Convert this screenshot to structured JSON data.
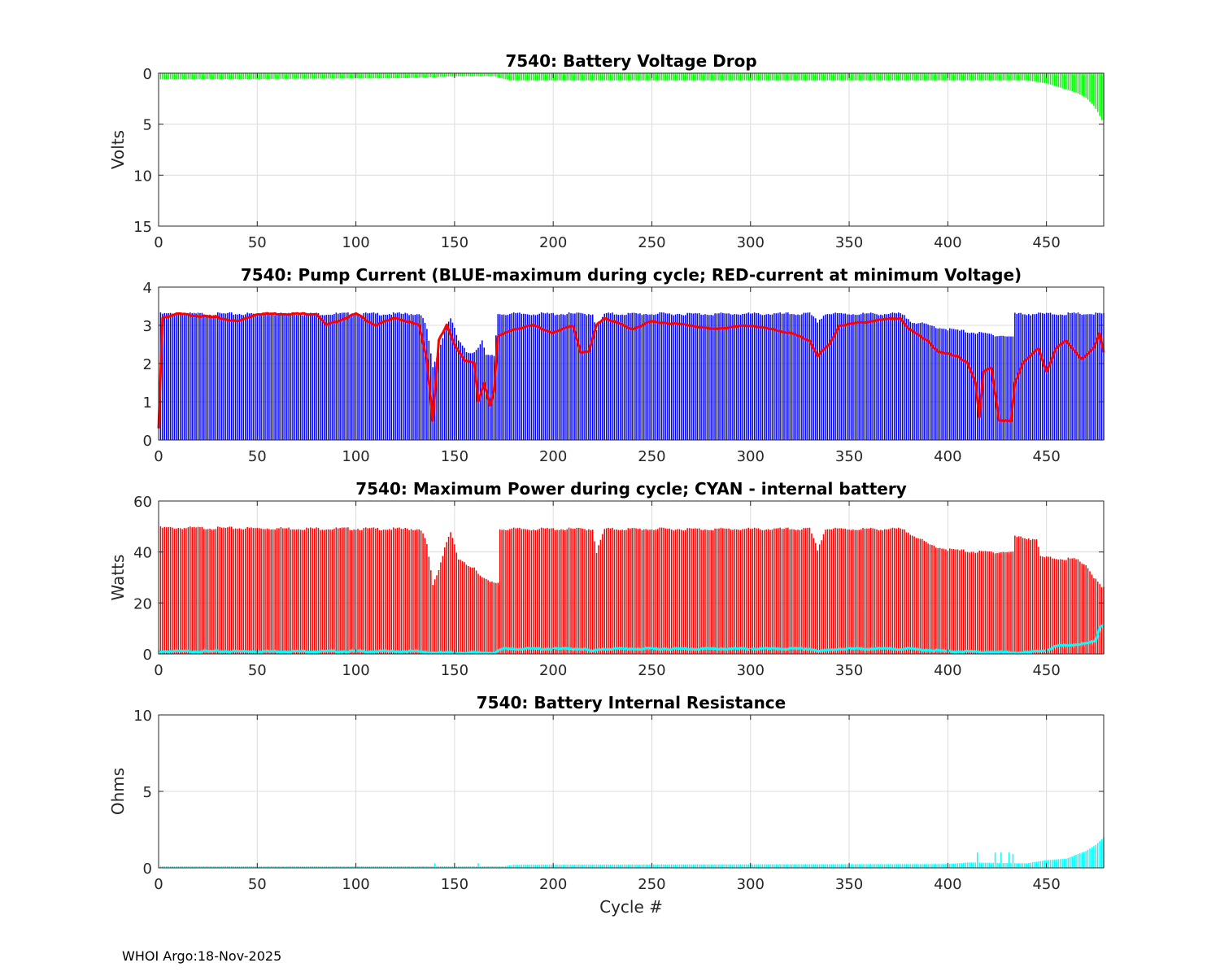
{
  "footer": "WHOI Argo:18-Nov-2025",
  "colors": {
    "green": "#00ff00",
    "blue": "#0000ff",
    "red": "#ff0000",
    "cyan": "#00ffff",
    "grid": "#dcdcdc",
    "axis": "#262626"
  },
  "chart_data": [
    {
      "type": "bar",
      "id": "voltage",
      "title": "7540: Battery Voltage Drop",
      "xlabel": "",
      "ylabel": "Volts",
      "xlim": [
        0,
        479
      ],
      "ylim": [
        0,
        15
      ],
      "y_reversed": true,
      "xticks": [
        0,
        50,
        100,
        150,
        200,
        250,
        300,
        350,
        400,
        450
      ],
      "yticks": [
        0,
        5,
        10,
        15
      ],
      "grid": true,
      "series": [
        {
          "name": "Battery voltage drop",
          "color": "green",
          "kind": "bar",
          "knots": [
            [
              1,
              0.6
            ],
            [
              120,
              0.5
            ],
            [
              140,
              0.4
            ],
            [
              150,
              0.3
            ],
            [
              170,
              0.3
            ],
            [
              178,
              0.7
            ],
            [
              260,
              0.7
            ],
            [
              440,
              0.7
            ],
            [
              450,
              1.0
            ],
            [
              455,
              1.3
            ],
            [
              460,
              1.6
            ],
            [
              465,
              1.9
            ],
            [
              470,
              2.4
            ],
            [
              474,
              3.2
            ],
            [
              476,
              3.8
            ],
            [
              478,
              4.6
            ]
          ]
        }
      ]
    },
    {
      "type": "bar",
      "id": "current",
      "title": "7540: Pump Current (BLUE-maximum during cycle; RED-current at minimum Voltage)",
      "xlabel": "",
      "ylabel": "",
      "xlim": [
        0,
        479
      ],
      "ylim": [
        0,
        4
      ],
      "xticks": [
        0,
        50,
        100,
        150,
        200,
        250,
        300,
        350,
        400,
        450
      ],
      "yticks": [
        0,
        1,
        2,
        3,
        4
      ],
      "grid": true,
      "series": [
        {
          "name": "BLUE-maximum during cycle",
          "color": "blue",
          "kind": "bar",
          "knots": [
            [
              1,
              3.3
            ],
            [
              133,
              3.3
            ],
            [
              136,
              2.9
            ],
            [
              139,
              1.9
            ],
            [
              142,
              2.3
            ],
            [
              145,
              2.9
            ],
            [
              148,
              3.2
            ],
            [
              152,
              2.6
            ],
            [
              156,
              2.3
            ],
            [
              160,
              2.3
            ],
            [
              164,
              2.6
            ],
            [
              166,
              2.2
            ],
            [
              170,
              2.2
            ],
            [
              172,
              3.3
            ],
            [
              220,
              3.3
            ],
            [
              222,
              2.9
            ],
            [
              226,
              3.3
            ],
            [
              330,
              3.3
            ],
            [
              334,
              3.1
            ],
            [
              338,
              3.3
            ],
            [
              376,
              3.3
            ],
            [
              382,
              3.1
            ],
            [
              390,
              3.0
            ],
            [
              400,
              2.9
            ],
            [
              415,
              2.8
            ],
            [
              433,
              2.7
            ],
            [
              434,
              3.3
            ],
            [
              479,
              3.3
            ]
          ]
        },
        {
          "name": "RED-current at minimum Voltage",
          "color": "red",
          "kind": "line",
          "knots": [
            [
              0,
              0.3
            ],
            [
              2,
              3.2
            ],
            [
              10,
              3.3
            ],
            [
              30,
              3.2
            ],
            [
              40,
              3.1
            ],
            [
              50,
              3.3
            ],
            [
              80,
              3.3
            ],
            [
              85,
              3.0
            ],
            [
              95,
              3.2
            ],
            [
              100,
              3.3
            ],
            [
              110,
              3.0
            ],
            [
              120,
              3.2
            ],
            [
              132,
              3.0
            ],
            [
              136,
              2.1
            ],
            [
              139,
              0.5
            ],
            [
              142,
              2.6
            ],
            [
              146,
              3.0
            ],
            [
              150,
              2.5
            ],
            [
              155,
              2.1
            ],
            [
              160,
              2.0
            ],
            [
              162,
              1.0
            ],
            [
              165,
              1.5
            ],
            [
              168,
              0.9
            ],
            [
              170,
              1.3
            ],
            [
              172,
              2.7
            ],
            [
              176,
              2.8
            ],
            [
              180,
              2.9
            ],
            [
              190,
              3.0
            ],
            [
              200,
              2.8
            ],
            [
              210,
              3.0
            ],
            [
              214,
              2.3
            ],
            [
              218,
              2.3
            ],
            [
              222,
              3.0
            ],
            [
              226,
              3.2
            ],
            [
              240,
              2.9
            ],
            [
              250,
              3.1
            ],
            [
              270,
              3.0
            ],
            [
              280,
              2.9
            ],
            [
              300,
              3.0
            ],
            [
              320,
              2.8
            ],
            [
              330,
              2.6
            ],
            [
              334,
              2.2
            ],
            [
              340,
              2.5
            ],
            [
              345,
              3.0
            ],
            [
              360,
              3.1
            ],
            [
              376,
              3.2
            ],
            [
              380,
              2.9
            ],
            [
              390,
              2.6
            ],
            [
              395,
              2.3
            ],
            [
              405,
              2.2
            ],
            [
              410,
              2.0
            ],
            [
              414,
              1.5
            ],
            [
              416,
              0.6
            ],
            [
              418,
              1.8
            ],
            [
              422,
              1.9
            ],
            [
              426,
              0.5
            ],
            [
              432,
              0.5
            ],
            [
              434,
              1.5
            ],
            [
              438,
              2.0
            ],
            [
              446,
              2.4
            ],
            [
              450,
              1.8
            ],
            [
              455,
              2.4
            ],
            [
              460,
              2.6
            ],
            [
              468,
              2.1
            ],
            [
              474,
              2.4
            ],
            [
              477,
              2.8
            ],
            [
              479,
              2.3
            ]
          ]
        }
      ]
    },
    {
      "type": "bar",
      "id": "power",
      "title": "7540: Maximum Power during cycle; CYAN - internal battery",
      "xlabel": "",
      "ylabel": "Watts",
      "xlim": [
        0,
        479
      ],
      "ylim": [
        0,
        60
      ],
      "xticks": [
        0,
        50,
        100,
        150,
        200,
        250,
        300,
        350,
        400,
        450
      ],
      "yticks": [
        0,
        20,
        40,
        60
      ],
      "grid": true,
      "series": [
        {
          "name": "Maximum Power during cycle",
          "color": "red",
          "kind": "bar",
          "knots": [
            [
              1,
              49.5
            ],
            [
              133,
              49
            ],
            [
              136,
              43
            ],
            [
              139,
              27
            ],
            [
              142,
              33
            ],
            [
              145,
              42
            ],
            [
              148,
              48
            ],
            [
              152,
              37
            ],
            [
              156,
              35
            ],
            [
              160,
              34
            ],
            [
              164,
              30
            ],
            [
              168,
              28
            ],
            [
              172,
              28
            ],
            [
              173,
              49
            ],
            [
              220,
              49
            ],
            [
              222,
              40
            ],
            [
              226,
              49
            ],
            [
              330,
              49
            ],
            [
              334,
              41
            ],
            [
              338,
              49
            ],
            [
              376,
              49
            ],
            [
              382,
              47
            ],
            [
              390,
              43
            ],
            [
              400,
              41
            ],
            [
              415,
              40
            ],
            [
              433,
              40
            ],
            [
              434,
              46
            ],
            [
              445,
              45
            ],
            [
              447,
              38
            ],
            [
              465,
              37
            ],
            [
              470,
              35
            ],
            [
              474,
              30
            ],
            [
              478,
              26
            ]
          ]
        },
        {
          "name": "CYAN - internal battery",
          "color": "cyan",
          "kind": "line",
          "knots": [
            [
              0,
              1.0
            ],
            [
              130,
              1.0
            ],
            [
              140,
              0.5
            ],
            [
              170,
              0.5
            ],
            [
              175,
              2.0
            ],
            [
              215,
              2.0
            ],
            [
              220,
              1.0
            ],
            [
              225,
              2.0
            ],
            [
              330,
              2.0
            ],
            [
              335,
              1.0
            ],
            [
              345,
              2.0
            ],
            [
              380,
              2.0
            ],
            [
              400,
              1.0
            ],
            [
              440,
              0.5
            ],
            [
              450,
              1.5
            ],
            [
              455,
              3.0
            ],
            [
              470,
              4.0
            ],
            [
              475,
              5.0
            ],
            [
              477,
              10.5
            ],
            [
              479,
              11.5
            ]
          ]
        }
      ]
    },
    {
      "type": "bar",
      "id": "resistance",
      "title": "7540: Battery Internal Resistance",
      "xlabel": "Cycle #",
      "ylabel": "Ohms",
      "xlim": [
        0,
        479
      ],
      "ylim": [
        0,
        10
      ],
      "xticks": [
        0,
        50,
        100,
        150,
        200,
        250,
        300,
        350,
        400,
        450
      ],
      "yticks": [
        0,
        5,
        10
      ],
      "grid": true,
      "series": [
        {
          "name": "Battery internal resistance",
          "color": "cyan",
          "kind": "bar",
          "knots": [
            [
              1,
              0.1
            ],
            [
              175,
              0.1
            ],
            [
              180,
              0.2
            ],
            [
              400,
              0.25
            ],
            [
              410,
              0.35
            ],
            [
              440,
              0.3
            ],
            [
              450,
              0.5
            ],
            [
              460,
              0.6
            ],
            [
              470,
              1.1
            ],
            [
              475,
              1.5
            ],
            [
              479,
              2.0
            ]
          ],
          "spikes": [
            [
              140,
              0.3
            ],
            [
              162,
              0.3
            ],
            [
              415,
              1.0
            ],
            [
              424,
              1.0
            ],
            [
              427,
              1.0
            ],
            [
              431,
              1.0
            ],
            [
              433,
              0.9
            ]
          ]
        }
      ]
    }
  ]
}
